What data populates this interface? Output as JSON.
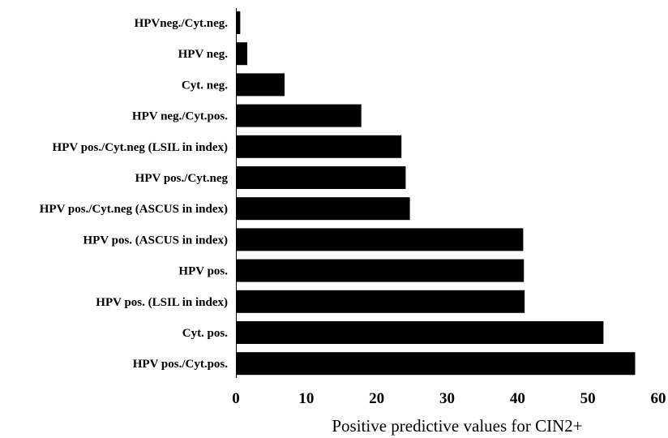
{
  "chart_data": {
    "type": "bar",
    "orientation": "horizontal",
    "categories": [
      "HPVneg./Cyt.neg.",
      "HPV neg.",
      "Cyt. neg.",
      "HPV neg./Cyt.pos.",
      "HPV pos./Cyt.neg (LSIL in index)",
      "HPV pos./Cyt.neg",
      "HPV pos./Cyt.neg (ASCUS in index)",
      "HPV pos. (ASCUS in index)",
      "HPV pos.",
      "HPV pos. (LSIL in index)",
      "Cyt. pos.",
      "HPV pos./Cyt.pos."
    ],
    "values": [
      0.5,
      1.5,
      6.8,
      17.7,
      23.4,
      24.0,
      24.6,
      40.7,
      40.8,
      40.9,
      52.1,
      56.6
    ],
    "title": "",
    "xlabel": "Positive predictive values for CIN2+",
    "ylabel": "",
    "xlim": [
      0,
      60
    ],
    "xticks": [
      "0",
      "10",
      "20",
      "30",
      "40",
      "50",
      "60"
    ],
    "bar_color": "#000000",
    "grid": false,
    "legend": "none"
  }
}
